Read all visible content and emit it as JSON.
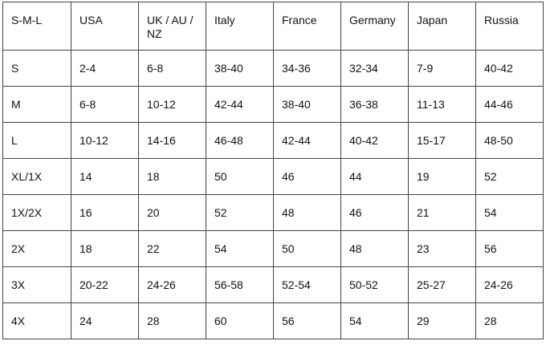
{
  "table": {
    "headers": [
      "S-M-L",
      "USA",
      "UK / AU / NZ",
      "Italy",
      "France",
      "Germany",
      "Japan",
      "Russia"
    ],
    "rows": [
      [
        "S",
        "2-4",
        "6-8",
        "38-40",
        "34-36",
        "32-34",
        "7-9",
        "40-42"
      ],
      [
        "M",
        "6-8",
        "10-12",
        "42-44",
        "38-40",
        "36-38",
        "11-13",
        "44-46"
      ],
      [
        "L",
        "10-12",
        "14-16",
        "46-48",
        "42-44",
        "40-42",
        "15-17",
        "48-50"
      ],
      [
        "XL/1X",
        "14",
        "18",
        "50",
        "46",
        "44",
        "19",
        "52"
      ],
      [
        "1X/2X",
        "16",
        "20",
        "52",
        "48",
        "46",
        "21",
        "54"
      ],
      [
        "2X",
        "18",
        "22",
        "54",
        "50",
        "48",
        "23",
        "56"
      ],
      [
        "3X",
        "20-22",
        "24-26",
        "56-58",
        "52-54",
        "50-52",
        "25-27",
        "24-26"
      ],
      [
        "4X",
        "24",
        "28",
        "60",
        "56",
        "54",
        "29",
        "28"
      ]
    ]
  }
}
